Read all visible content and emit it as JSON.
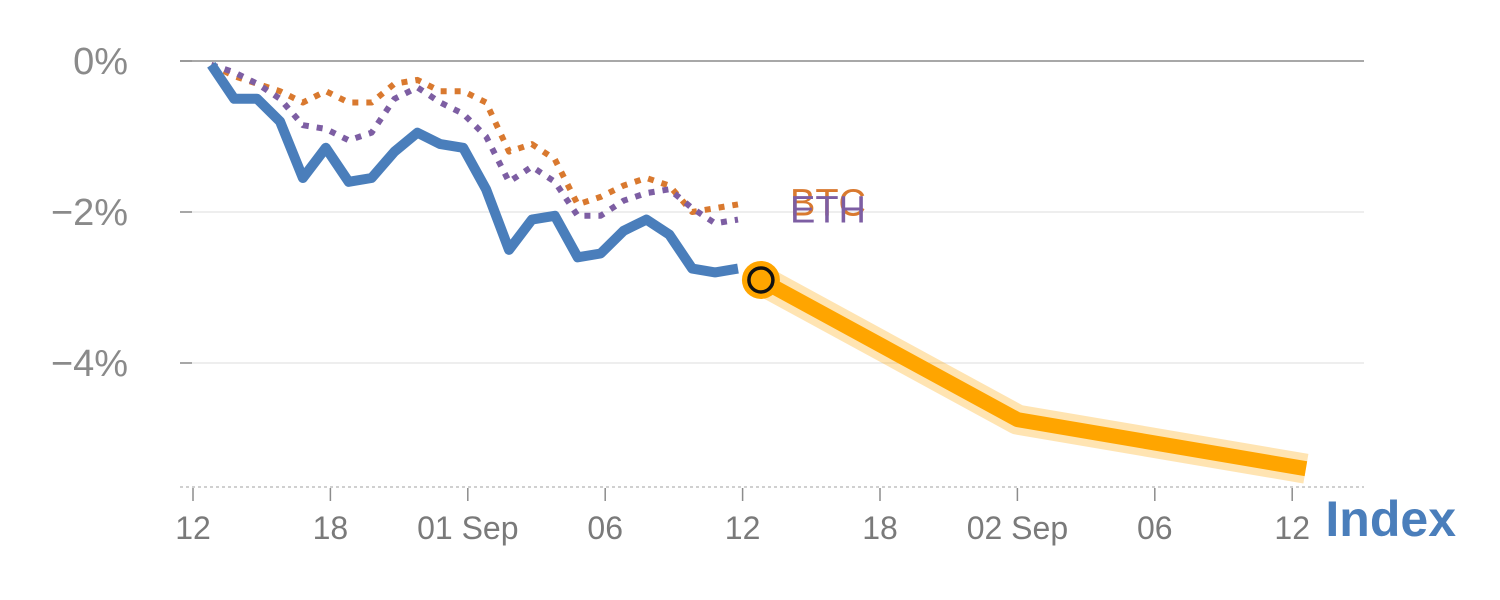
{
  "chart_data": {
    "type": "line",
    "title": "",
    "xlabel": "",
    "ylabel": "",
    "ylim": [
      -5.6,
      0
    ],
    "y_ticks": [
      {
        "value": 0,
        "label": "0%"
      },
      {
        "value": -2,
        "label": "−2%"
      },
      {
        "value": -4,
        "label": "−4%"
      }
    ],
    "x_ticks": [
      {
        "x": 0,
        "label": "12"
      },
      {
        "x": 6,
        "label": "18"
      },
      {
        "x": 12,
        "label": "01 Sep"
      },
      {
        "x": 18,
        "label": "06"
      },
      {
        "x": 24,
        "label": "12"
      },
      {
        "x": 30,
        "label": "18"
      },
      {
        "x": 36,
        "label": "02 Sep"
      },
      {
        "x": 42,
        "label": "06"
      },
      {
        "x": 48,
        "label": "12"
      }
    ],
    "series": [
      {
        "name": "BTC",
        "style": "dotted",
        "color": "#d9792f",
        "x": [
          0.8,
          1.8,
          2.8,
          3.8,
          4.8,
          5.8,
          6.8,
          7.8,
          8.8,
          9.8,
          10.8,
          11.8,
          12.8,
          13.8,
          14.8,
          15.8,
          16.8,
          17.8,
          18.8,
          19.8,
          20.8,
          21.8,
          22.8,
          23.8
        ],
        "values": [
          -0.05,
          -0.2,
          -0.3,
          -0.4,
          -0.55,
          -0.4,
          -0.55,
          -0.55,
          -0.3,
          -0.25,
          -0.4,
          -0.4,
          -0.55,
          -1.2,
          -1.1,
          -1.3,
          -1.9,
          -1.8,
          -1.65,
          -1.55,
          -1.65,
          -2.0,
          -1.95,
          -1.9
        ]
      },
      {
        "name": "ETH",
        "style": "dotted",
        "color": "#7d5ea3",
        "x": [
          0.8,
          1.8,
          2.8,
          3.8,
          4.8,
          5.8,
          6.8,
          7.8,
          8.8,
          9.8,
          10.8,
          11.8,
          12.8,
          13.8,
          14.8,
          15.8,
          16.8,
          17.8,
          18.8,
          19.8,
          20.8,
          21.8,
          22.8,
          23.8
        ],
        "values": [
          -0.05,
          -0.15,
          -0.3,
          -0.5,
          -0.85,
          -0.9,
          -1.05,
          -0.95,
          -0.5,
          -0.35,
          -0.55,
          -0.7,
          -1.0,
          -1.6,
          -1.4,
          -1.6,
          -2.05,
          -2.05,
          -1.85,
          -1.75,
          -1.7,
          -1.95,
          -2.15,
          -2.1
        ]
      },
      {
        "name": "Index",
        "style": "solid",
        "color": "#4a7ebb",
        "x": [
          0.8,
          1.8,
          2.8,
          3.8,
          4.8,
          5.8,
          6.8,
          7.8,
          8.8,
          9.8,
          10.8,
          11.8,
          12.8,
          13.8,
          14.8,
          15.8,
          16.8,
          17.8,
          18.8,
          19.8,
          20.8,
          21.8,
          22.8,
          23.8
        ],
        "values": [
          -0.05,
          -0.5,
          -0.5,
          -0.8,
          -1.55,
          -1.15,
          -1.6,
          -1.55,
          -1.2,
          -0.95,
          -1.1,
          -1.15,
          -1.7,
          -2.5,
          -2.1,
          -2.05,
          -2.6,
          -2.55,
          -2.25,
          -2.1,
          -2.3,
          -2.75,
          -2.8,
          -2.75
        ]
      },
      {
        "name": "Index projection",
        "style": "highlight",
        "color": "#ffa500",
        "x": [
          24.8,
          36,
          48.6
        ],
        "values": [
          -2.9,
          -4.75,
          -5.4
        ]
      }
    ],
    "marker": {
      "x": 24.8,
      "value": -2.9
    },
    "series_labels": {
      "btc": "BTC",
      "eth": "ETH",
      "index": "Index"
    }
  }
}
